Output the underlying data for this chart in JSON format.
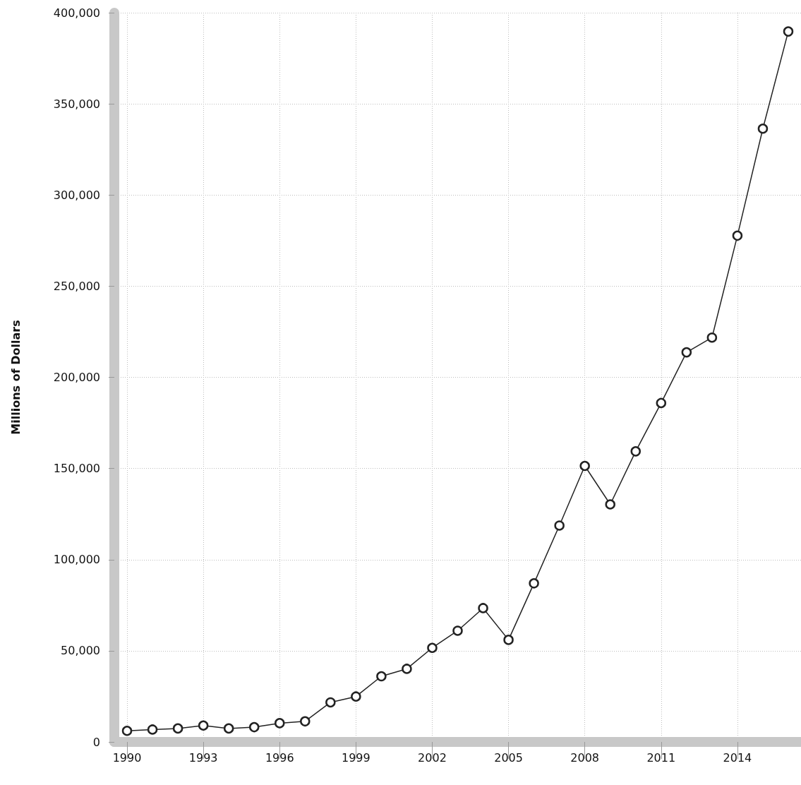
{
  "chart_data": {
    "type": "line",
    "ylabel": "Millions of Dollars",
    "x": [
      1990,
      1991,
      1992,
      1993,
      1994,
      1995,
      1996,
      1997,
      1998,
      1999,
      2000,
      2001,
      2002,
      2003,
      2004,
      2005,
      2006,
      2007,
      2008,
      2009,
      2010,
      2011,
      2012,
      2013,
      2014,
      2015,
      2016
    ],
    "series": [
      {
        "color": "#222222",
        "values": [
          6100,
          6800,
          7400,
          9000,
          7400,
          8100,
          10300,
          11300,
          21700,
          24900,
          36000,
          40100,
          51600,
          61000,
          73400,
          56000,
          87000,
          118700,
          151400,
          130300,
          159400,
          185900,
          213700,
          221800,
          277700,
          336400,
          389700
        ]
      }
    ],
    "xlim": [
      1989.5,
      2016.5
    ],
    "xticks": [
      1990,
      1993,
      1996,
      1999,
      2002,
      2005,
      2008,
      2011,
      2014
    ],
    "ylim": [
      0,
      400000
    ],
    "yticks": [
      0,
      {
        "value": 50000,
        "label": "50,000"
      },
      {
        "value": 100000,
        "label": "100,000"
      },
      {
        "value": 150000,
        "label": "150,000"
      },
      {
        "value": 200000,
        "label": "200,000"
      },
      {
        "value": 250000,
        "label": "250,000"
      },
      {
        "value": 300000,
        "label": "300,000"
      },
      {
        "value": 350000,
        "label": "350,000"
      },
      {
        "value": 400000,
        "label": "400,000"
      }
    ],
    "grid": true,
    "marker": "circle",
    "line_style": "solid"
  }
}
